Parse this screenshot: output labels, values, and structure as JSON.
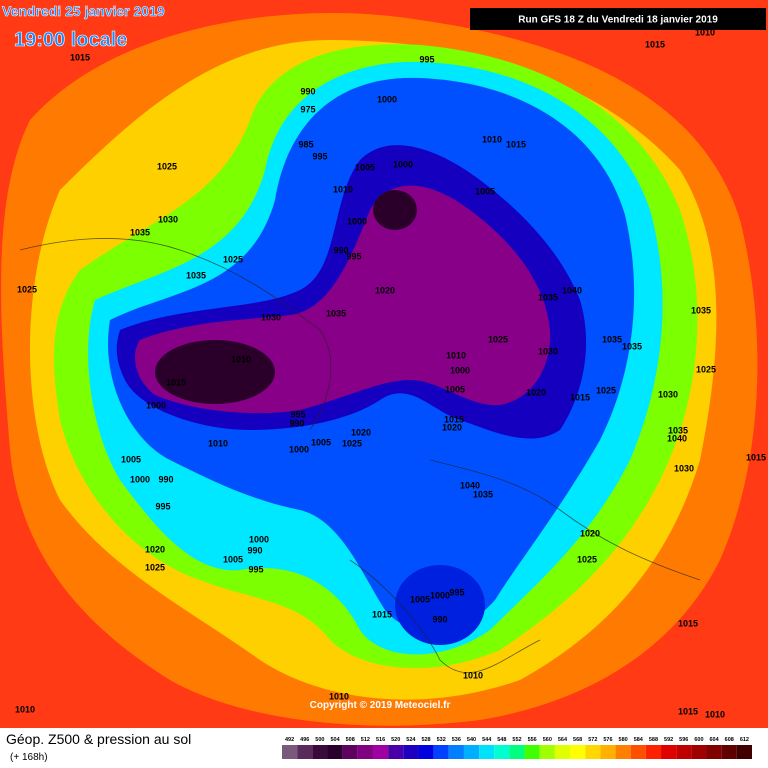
{
  "header": {
    "date": "Vendredi 25 janvier 2019",
    "time": "19:00 locale",
    "run": "Run GFS 18 Z du Vendredi 18 janvier 2019"
  },
  "copyright": "Copyright © 2019 Meteociel.fr",
  "isobar_labels": [
    "1015",
    "1015",
    "1010",
    "995",
    "990",
    "975",
    "1000",
    "985",
    "995",
    "1005",
    "1000",
    "1010",
    "1015",
    "1005",
    "1010",
    "1025",
    "1030",
    "1035",
    "1000",
    "990",
    "995",
    "1025",
    "1035",
    "1020",
    "1025",
    "1035",
    "1040",
    "1035",
    "1030",
    "1035",
    "1035",
    "1035",
    "1025",
    "1030",
    "1010",
    "1010",
    "1000",
    "1015",
    "1005",
    "1020",
    "1015",
    "1025",
    "1030",
    "1025",
    "1000",
    "995",
    "990",
    "1015",
    "1020",
    "1020",
    "1025",
    "1005",
    "1000",
    "1010",
    "1035",
    "1040",
    "1005",
    "1015",
    "1030",
    "1000",
    "990",
    "1040",
    "1035",
    "995",
    "1020",
    "1000",
    "990",
    "1020",
    "1005",
    "995",
    "1025",
    "1025",
    "1005",
    "1000",
    "995",
    "1015",
    "990",
    "1015",
    "1010",
    "1010",
    "1010",
    "1015",
    "1010"
  ],
  "legend": {
    "title": "Géop. Z500 & pression au sol",
    "lead": "(+ 168h)",
    "levels": [
      492,
      496,
      500,
      504,
      508,
      512,
      516,
      520,
      524,
      528,
      532,
      536,
      540,
      544,
      548,
      552,
      556,
      560,
      564,
      568,
      572,
      576,
      580,
      584,
      588,
      592,
      596,
      600,
      604,
      608,
      612
    ],
    "colors": [
      "#7a5a7a",
      "#5a2a5a",
      "#3a0a3a",
      "#2a002a",
      "#600060",
      "#800080",
      "#a000a0",
      "#4a00a8",
      "#2000c0",
      "#0000e0",
      "#0040ff",
      "#0080ff",
      "#00b0ff",
      "#00e0ff",
      "#00ffd0",
      "#00ff80",
      "#40ff00",
      "#a0ff00",
      "#e0ff00",
      "#ffff00",
      "#ffd800",
      "#ffb000",
      "#ff8000",
      "#ff5000",
      "#ff2000",
      "#e00000",
      "#c00000",
      "#a00000",
      "#800000",
      "#600000",
      "#400000"
    ]
  }
}
